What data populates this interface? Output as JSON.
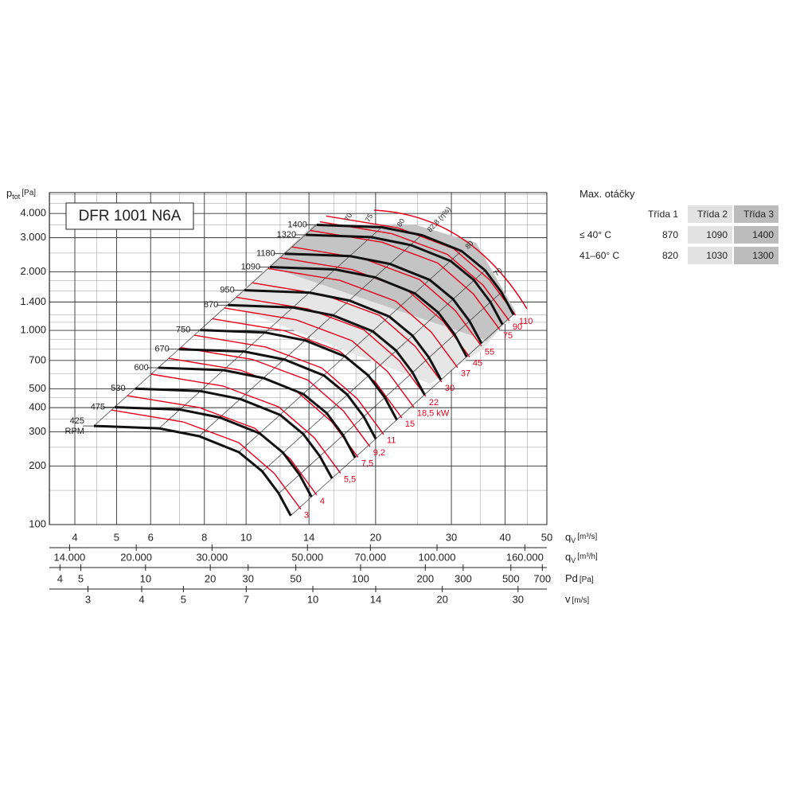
{
  "chart_data": {
    "type": "fan-curves",
    "title": "DFR 1001 N6A",
    "y_label": {
      "main": "p",
      "sub": "tot",
      "unit": "[Pa]"
    },
    "x_label": {
      "main": "q",
      "sub": "V",
      "unit": "[m³/s]"
    },
    "xlim": [
      3.49,
      50
    ],
    "ylim": [
      100,
      5120
    ],
    "log_x": true,
    "log_y": true,
    "grid": true,
    "xticks": [
      4,
      5,
      6,
      8,
      10,
      14,
      20,
      30,
      40,
      50
    ],
    "xminor_ticks": [
      3.5,
      4.5,
      7,
      9,
      12,
      16,
      18,
      25,
      35,
      45
    ],
    "yticks": [
      100,
      200,
      300,
      400,
      500,
      700,
      {
        "value": 1000,
        "label": "1.000"
      },
      {
        "value": 1400,
        "label": "1.400"
      },
      {
        "value": 2000,
        "label": "2.000"
      },
      {
        "value": 3000,
        "label": "3.000"
      },
      {
        "value": 4000,
        "label": "4.000"
      }
    ],
    "yminor_ticks": [
      150,
      250,
      350,
      450,
      600,
      800,
      900,
      1100,
      1200,
      1600,
      1800,
      2500,
      3500,
      4500,
      5000
    ],
    "secondary_axes": [
      {
        "label": {
          "main": "q",
          "sub": "V",
          "unit": "[m³/h]"
        },
        "lim": [
          12564,
          180000
        ],
        "ticks": [
          {
            "value": 14000,
            "label": "14.000"
          },
          {
            "value": 20000,
            "label": "20.000"
          },
          {
            "value": 30000,
            "label": "30.000"
          },
          {
            "value": 50000,
            "label": "50.000"
          },
          {
            "value": 70000,
            "label": "70.000"
          },
          {
            "value": 100000,
            "label": "100.000"
          },
          {
            "value": 160000,
            "label": "160.000"
          }
        ]
      },
      {
        "label": {
          "main": "Pd",
          "unit": "[Pa]"
        },
        "lim": [
          3.57,
          735
        ],
        "ticks": [
          4,
          5,
          10,
          20,
          30,
          50,
          100,
          200,
          300,
          500,
          700
        ]
      },
      {
        "label": {
          "main": "v",
          "unit": "[m/s]"
        },
        "lim": [
          2.44,
          35
        ],
        "ticks": [
          3,
          4,
          5,
          7,
          10,
          14,
          20,
          30
        ]
      }
    ],
    "rpm_unit": "RPM",
    "rpm_color": "#111111",
    "rpm_curves": [
      {
        "rpm": 425,
        "qv": [
          4.43,
          6.28,
          7.78,
          9.62,
          10.9,
          11.9,
          12.7
        ],
        "p": [
          322,
          313,
          285,
          236,
          188,
          145,
          111
        ]
      },
      {
        "rpm": 475,
        "qv": [
          4.95,
          7.02,
          8.69,
          10.75,
          12.18,
          13.3,
          14.19
        ],
        "p": [
          402,
          391,
          356,
          295,
          235,
          181,
          139
        ]
      },
      {
        "rpm": 530,
        "qv": [
          5.52,
          7.83,
          9.7,
          12.0,
          13.59,
          14.84,
          15.84
        ],
        "p": [
          501,
          487,
          443,
          367,
          292,
          225,
          173
        ]
      },
      {
        "rpm": 600,
        "qv": [
          6.25,
          8.87,
          10.98,
          13.58,
          15.39,
          16.8,
          17.93
        ],
        "p": [
          642,
          624,
          568,
          470,
          375,
          289,
          221
        ]
      },
      {
        "rpm": 670,
        "qv": [
          6.98,
          9.9,
          12.27,
          15.17,
          17.18,
          18.76,
          20.02
        ],
        "p": [
          800,
          778,
          708,
          586,
          467,
          360,
          276
        ]
      },
      {
        "rpm": 750,
        "qv": [
          7.82,
          11.08,
          13.73,
          16.98,
          19.24,
          21.0,
          22.41
        ],
        "p": [
          1003,
          975,
          887,
          735,
          585,
          452,
          346
        ]
      },
      {
        "rpm": 870,
        "qv": [
          9.07,
          12.86,
          15.93,
          19.69,
          22.31,
          24.36,
          26.0
        ],
        "p": [
          1349,
          1311,
          1194,
          989,
          788,
          608,
          465
        ]
      },
      {
        "rpm": 950,
        "qv": [
          9.9,
          14.04,
          17.39,
          21.5,
          24.36,
          26.6,
          28.39
        ],
        "p": [
          1609,
          1564,
          1424,
          1179,
          939,
          725,
          555
        ]
      },
      {
        "rpm": 1090,
        "qv": [
          11.36,
          16.11,
          19.95,
          24.67,
          27.96,
          30.52,
          32.57
        ],
        "p": [
          2118,
          2059,
          1875,
          1552,
          1237,
          954,
          730
        ]
      },
      {
        "rpm": 1180,
        "qv": [
          12.3,
          17.44,
          21.6,
          26.71,
          30.26,
          33.04,
          35.26
        ],
        "p": [
          2482,
          2413,
          2197,
          1819,
          1449,
          1118,
          856
        ]
      },
      {
        "rpm": 1320,
        "qv": [
          13.76,
          19.51,
          24.16,
          29.88,
          33.85,
          36.96,
          39.44
        ],
        "p": [
          3106,
          3020,
          2749,
          2277,
          1814,
          1399,
          1071
        ]
      },
      {
        "rpm": 1400,
        "qv": [
          14.59,
          20.69,
          25.63,
          31.69,
          35.91,
          39.2,
          41.84
        ],
        "p": [
          3494,
          3396,
          3093,
          2561,
          2040,
          1573,
          1204
        ]
      }
    ],
    "power_color": "#e3001b",
    "power_curves": [
      {
        "power": 3,
        "qv": [
          4.86,
          7.14,
          9.62,
          11.64,
          13.4
        ],
        "p": [
          389,
          338,
          264,
          183,
          120
        ]
      },
      {
        "power": 4,
        "qv": [
          5.29,
          7.78,
          10.48,
          12.68,
          14.59
        ],
        "p": [
          461,
          401,
          313,
          217,
          142
        ]
      },
      {
        "power": 5.5,
        "label": "5,5",
        "qv": [
          6.01,
          8.83,
          11.9,
          14.4,
          16.58
        ],
        "p": [
          595,
          517,
          404,
          280,
          184
        ]
      },
      {
        "power": 7.5,
        "label": "7,5",
        "qv": [
          6.6,
          9.7,
          13.07,
          15.82,
          18.21
        ],
        "p": [
          718,
          624,
          488,
          338,
          222
        ]
      },
      {
        "power": 9.2,
        "label": "9,2",
        "qv": [
          7.04,
          10.34,
          13.93,
          16.85,
          19.4
        ],
        "p": [
          816,
          709,
          554,
          384,
          252
        ]
      },
      {
        "power": 11,
        "qv": [
          7.57,
          11.12,
          14.99,
          18.14,
          20.88
        ],
        "p": [
          944,
          820,
          641,
          444,
          291
        ]
      },
      {
        "power": 15,
        "qv": [
          8.35,
          12.27,
          16.53,
          20.0,
          23.02
        ],
        "p": [
          1148,
          997,
          779,
          540,
          354
        ]
      },
      {
        "power": 18.5,
        "label": "18,5 kW",
        "qv": [
          8.9,
          13.07,
          17.61,
          21.31,
          24.54
        ],
        "p": [
          1304,
          1133,
          885,
          614,
          402
        ]
      },
      {
        "power": 22,
        "qv": [
          9.49,
          13.94,
          18.78,
          22.72,
          26.16
        ],
        "p": [
          1482,
          1288,
          1006,
          697,
          457
        ]
      },
      {
        "power": 30,
        "qv": [
          10.33,
          15.17,
          20.44,
          24.74,
          28.48
        ],
        "p": [
          1757,
          1526,
          1192,
          826,
          542
        ]
      },
      {
        "power": 37,
        "qv": [
          11.25,
          16.52,
          22.26,
          26.94,
          31.01
        ],
        "p": [
          2083,
          1810,
          1414,
          980,
          643
        ]
      },
      {
        "power": 45,
        "qv": [
          11.99,
          17.61,
          23.73,
          28.72,
          33.06
        ],
        "p": [
          2367,
          2057,
          1607,
          1114,
          730
        ]
      },
      {
        "power": 55,
        "qv": [
          12.78,
          18.78,
          25.3,
          30.61,
          35.24
        ],
        "p": [
          2691,
          2338,
          1826,
          1266,
          830
        ]
      },
      {
        "power": 75,
        "qv": [
          14.09,
          20.71,
          27.9,
          33.76,
          38.86
        ],
        "p": [
          3271,
          2843,
          2220,
          1539,
          1009
        ]
      },
      {
        "power": 90,
        "qv": [
          14.84,
          21.8,
          29.37,
          35.54,
          40.91
        ],
        "p": [
          3626,
          3150,
          2461,
          1706,
          1119
        ]
      },
      {
        "power": 110,
        "qv": [
          15.35,
          22.55,
          30.38,
          36.76,
          42.32
        ],
        "p": [
          3879,
          3371,
          2633,
          1825,
          1197
        ]
      }
    ],
    "efficiency_labels": [
      70,
      75,
      80,
      {
        "value": 82.8,
        "label": "82,8 (η%)"
      },
      80,
      70
    ]
  },
  "table": {
    "title": "Max. otáčky",
    "header": [
      "Třída 1",
      "Třída 2",
      "Třída 3"
    ],
    "rows": [
      {
        "label": "≤ 40° C",
        "values": [
          870,
          1090,
          1400
        ]
      },
      {
        "label": "41–60° C",
        "values": [
          820,
          1030,
          1300
        ]
      }
    ]
  }
}
